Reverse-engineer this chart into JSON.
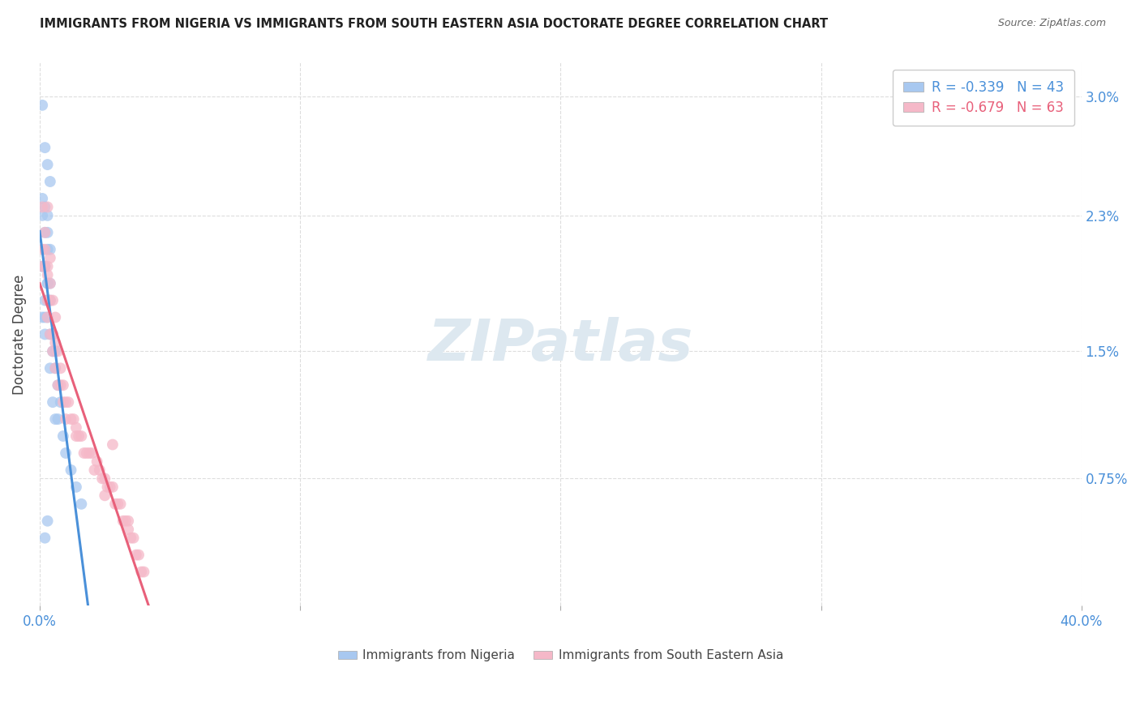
{
  "title": "IMMIGRANTS FROM NIGERIA VS IMMIGRANTS FROM SOUTH EASTERN ASIA DOCTORATE DEGREE CORRELATION CHART",
  "source": "Source: ZipAtlas.com",
  "ylabel": "Doctorate Degree",
  "ytick_labels": [
    "0.75%",
    "1.5%",
    "2.3%",
    "3.0%"
  ],
  "ytick_values": [
    0.0075,
    0.015,
    0.023,
    0.03
  ],
  "xtick_labels": [
    "0.0%",
    "",
    "",
    "",
    "40.0%"
  ],
  "xtick_values": [
    0.0,
    0.1,
    0.2,
    0.3,
    0.4
  ],
  "xlim": [
    0.0,
    0.4
  ],
  "ylim": [
    0.0,
    0.032
  ],
  "series1_color": "#a8c8f0",
  "series2_color": "#f5b8c8",
  "trendline1_color": "#4a90d9",
  "trendline2_color": "#e8607a",
  "trendline_dashed_color": "#b0c8e0",
  "background_color": "#ffffff",
  "grid_color": "#dddddd",
  "watermark_text": "ZIPatlas",
  "watermark_color": "#dde8f0",
  "legend1_label": "R = -0.339   N = 43",
  "legend2_label": "R = -0.679   N = 63",
  "bottom_legend1": "Immigrants from Nigeria",
  "bottom_legend2": "Immigrants from South Eastern Asia",
  "nigeria_x": [
    0.001,
    0.002,
    0.003,
    0.004,
    0.001,
    0.002,
    0.001,
    0.003,
    0.002,
    0.003,
    0.004,
    0.003,
    0.002,
    0.001,
    0.002,
    0.003,
    0.004,
    0.003,
    0.002,
    0.003,
    0.004,
    0.002,
    0.003,
    0.001,
    0.002,
    0.004,
    0.005,
    0.006,
    0.005,
    0.004,
    0.006,
    0.007,
    0.008,
    0.005,
    0.006,
    0.007,
    0.009,
    0.01,
    0.012,
    0.014,
    0.016,
    0.003,
    0.002
  ],
  "nigeria_y": [
    0.0295,
    0.027,
    0.026,
    0.025,
    0.024,
    0.0235,
    0.023,
    0.023,
    0.022,
    0.022,
    0.021,
    0.021,
    0.02,
    0.02,
    0.02,
    0.019,
    0.019,
    0.019,
    0.018,
    0.018,
    0.018,
    0.017,
    0.017,
    0.017,
    0.016,
    0.016,
    0.016,
    0.015,
    0.015,
    0.014,
    0.014,
    0.013,
    0.012,
    0.012,
    0.011,
    0.011,
    0.01,
    0.009,
    0.008,
    0.007,
    0.006,
    0.005,
    0.004
  ],
  "sea_x": [
    0.001,
    0.002,
    0.001,
    0.003,
    0.002,
    0.003,
    0.001,
    0.004,
    0.002,
    0.003,
    0.004,
    0.005,
    0.003,
    0.004,
    0.006,
    0.003,
    0.005,
    0.004,
    0.006,
    0.007,
    0.005,
    0.006,
    0.008,
    0.007,
    0.009,
    0.008,
    0.01,
    0.009,
    0.011,
    0.01,
    0.012,
    0.013,
    0.014,
    0.015,
    0.016,
    0.014,
    0.017,
    0.018,
    0.019,
    0.02,
    0.022,
    0.021,
    0.023,
    0.024,
    0.025,
    0.026,
    0.027,
    0.028,
    0.025,
    0.03,
    0.029,
    0.031,
    0.032,
    0.033,
    0.034,
    0.035,
    0.034,
    0.036,
    0.037,
    0.038,
    0.039,
    0.04,
    0.028
  ],
  "sea_y": [
    0.0235,
    0.022,
    0.021,
    0.0235,
    0.021,
    0.02,
    0.02,
    0.0205,
    0.02,
    0.0195,
    0.019,
    0.018,
    0.018,
    0.018,
    0.017,
    0.017,
    0.016,
    0.016,
    0.0155,
    0.015,
    0.015,
    0.014,
    0.014,
    0.013,
    0.013,
    0.013,
    0.012,
    0.012,
    0.012,
    0.011,
    0.011,
    0.011,
    0.01,
    0.01,
    0.01,
    0.0105,
    0.009,
    0.009,
    0.009,
    0.009,
    0.0085,
    0.008,
    0.008,
    0.0075,
    0.0075,
    0.007,
    0.007,
    0.007,
    0.0065,
    0.006,
    0.006,
    0.006,
    0.005,
    0.005,
    0.005,
    0.004,
    0.0045,
    0.004,
    0.003,
    0.003,
    0.002,
    0.002,
    0.0095
  ],
  "trendline1_x_start": 0.0,
  "trendline1_x_solid_end": 0.165,
  "trendline1_x_dash_end": 0.26,
  "trendline2_x_start": 0.0,
  "trendline2_x_end": 0.4
}
